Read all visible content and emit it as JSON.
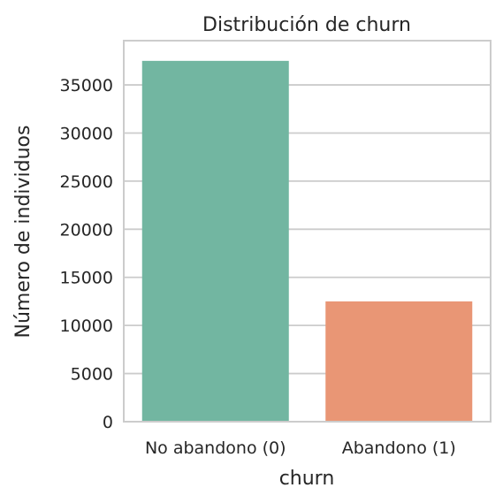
{
  "chart_data": {
    "type": "bar",
    "title": "Distribución de churn",
    "xlabel": "churn",
    "ylabel": "Número de individuos",
    "categories": [
      "No abandono (0)",
      "Abandono (1)"
    ],
    "values": [
      37500,
      12500
    ],
    "colors": [
      "#72b6a1",
      "#e99675"
    ],
    "ylim": [
      0,
      39600
    ],
    "yticks": [
      0,
      5000,
      10000,
      15000,
      20000,
      25000,
      30000,
      35000
    ],
    "grid": "horizontal",
    "grid_color": "#cccccc",
    "frame_color": "#cccccc"
  }
}
